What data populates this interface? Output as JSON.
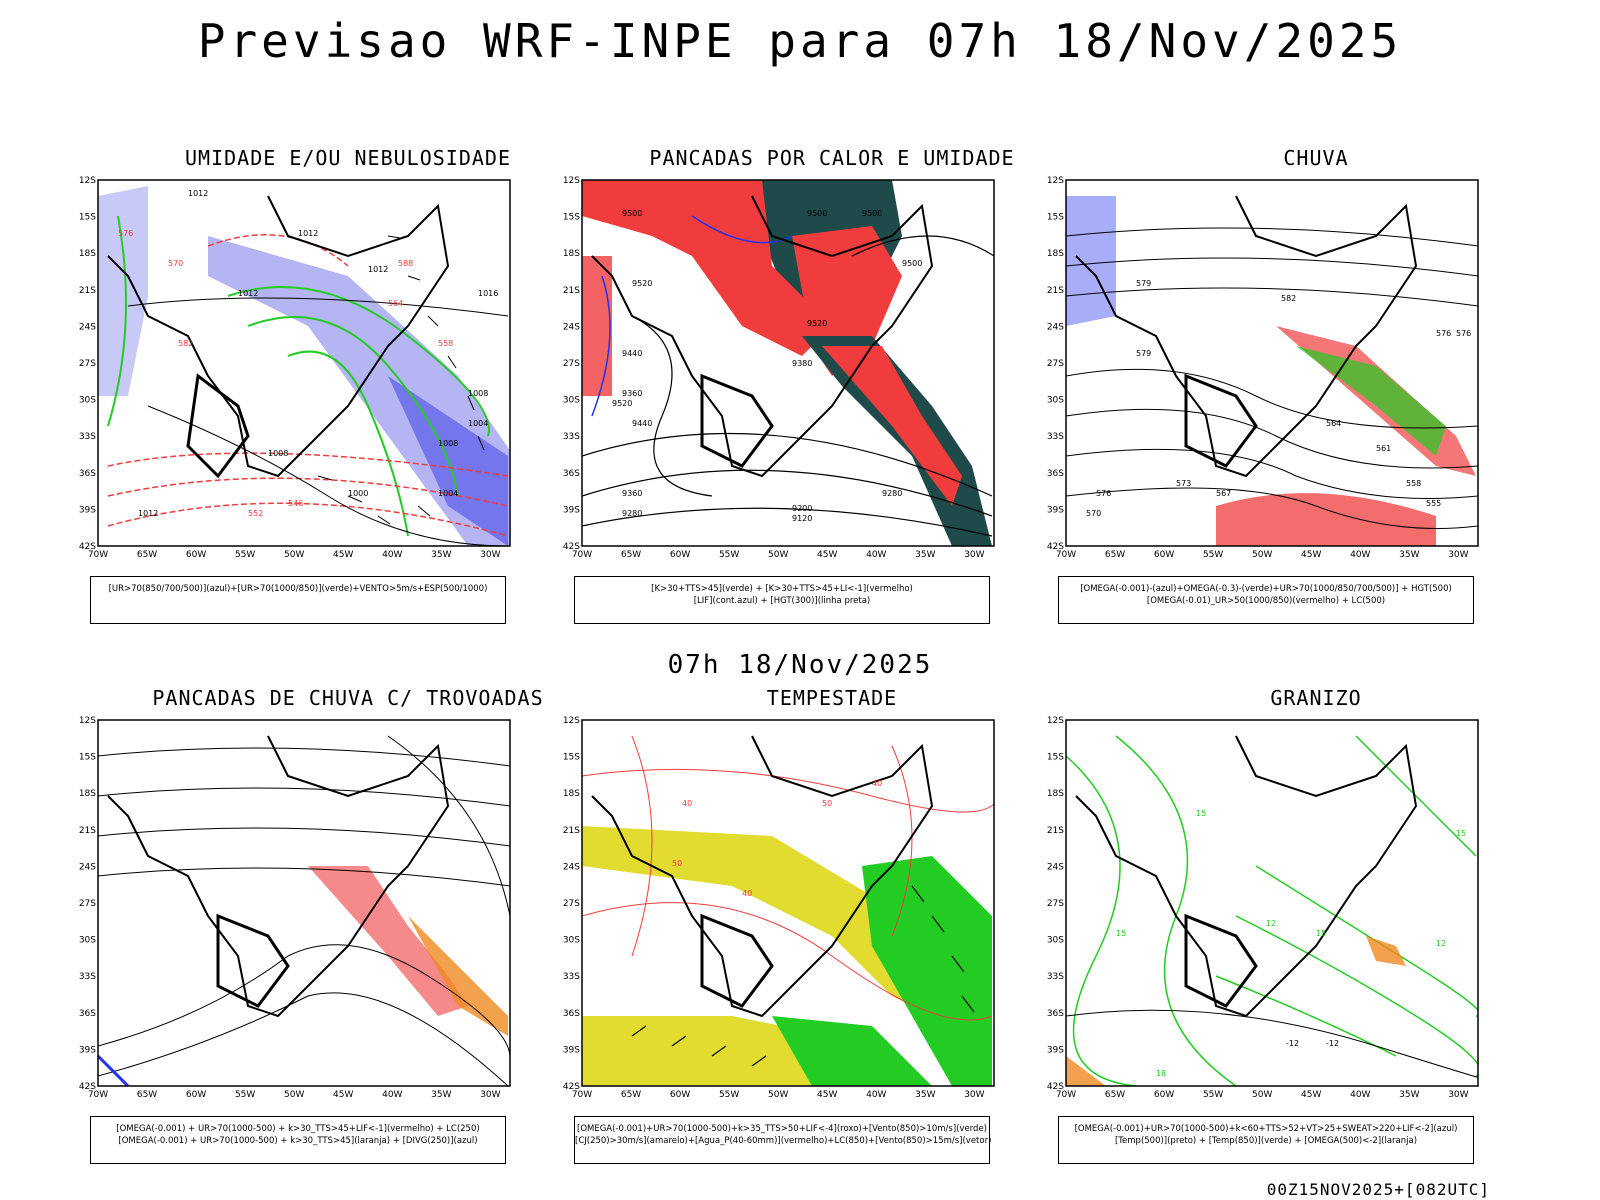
{
  "title": "Previsao WRF-INPE  para 07h 18/Nov/2025",
  "mid_title": "07h 18/Nov/2025",
  "footer": "00Z15NOV2025+[082UTC]",
  "lat_ticks": [
    "12S",
    "15S",
    "18S",
    "21S",
    "24S",
    "27S",
    "30S",
    "33S",
    "36S",
    "39S",
    "42S"
  ],
  "lon_ticks": [
    "70W",
    "65W",
    "60W",
    "55W",
    "50W",
    "45W",
    "40W",
    "35W",
    "30W"
  ],
  "panels": [
    {
      "title": "UMIDADE E/OU NEBULOSIDADE",
      "legend": [
        "[UR>70(850/700/500)](azul)+[UR>70(1000/850)](verde)+VENTO>5m/s+ESP(500/1000)"
      ],
      "labels": [
        "1012",
        "1012",
        "1012",
        "1012",
        "1016",
        "1008",
        "1004",
        "1008",
        "1000",
        "1004",
        "1008",
        "1012",
        "570",
        "576",
        "582",
        "558",
        "552",
        "546",
        "564",
        "588"
      ]
    },
    {
      "title": "PANCADAS POR CALOR E UMIDADE",
      "legend": [
        "[K>30+TTS>45](verde) + [K>30+TTS>45+LI<-1](vermelho)",
        "[LIF](cont.azul) + [HGT(300)](linha preta)"
      ],
      "labels": [
        "9500",
        "9500",
        "9500",
        "9500",
        "9520",
        "9520",
        "9440",
        "9380",
        "9360",
        "9520",
        "9440",
        "9360",
        "9280",
        "9200",
        "9120",
        "9280"
      ]
    },
    {
      "title": "CHUVA",
      "legend": [
        "[OMEGA(-0.001)-(azul)+OMEGA(-0.3)-(verde)+UR>70(1000/850/700/500)] + HGT(500)",
        "[OMEGA(-0.01)_UR>50(1000/850)(vermelho) + LC(500)"
      ],
      "labels": [
        "582",
        "579",
        "576",
        "573",
        "576",
        "570",
        "567",
        "564",
        "561",
        "558",
        "555",
        "579",
        "576"
      ]
    },
    {
      "title": "PANCADAS DE CHUVA C/ TROVOADAS",
      "legend": [
        "[OMEGA(-0.001) + UR>70(1000-500) + k>30_TTS>45+LIF<-1](vermelho) + LC(250)",
        "[OMEGA(-0.001) + UR>70(1000-500) + k>30_TTS>45](laranja) + [DIVG(250)](azul)"
      ],
      "labels": []
    },
    {
      "title": "TEMPESTADE",
      "legend": [
        "[OMEGA(-0.001)+UR>70(1000-500)+k>35_TTS>50+LIF<-4](roxo)+[Vento(850)>10m/s](verde)",
        "[CJ(250)>30m/s](amarelo)+[Agua_P(40-60mm)](vermelho)+LC(850)+[Vento(850)>15m/s](vetor)"
      ],
      "labels": [
        "40",
        "50",
        "40",
        "50",
        "40"
      ]
    },
    {
      "title": "GRANIZO",
      "legend": [
        "[OMEGA(-0.001)+UR>70(1000-500)+k<60+TTS>52+VT>25+SWEAT>220+LIF<-2](azul)",
        "[Temp(500)](preto) + [Temp(850)](verde) + [OMEGA(500)<-2](laranja)"
      ],
      "labels": [
        "15",
        "12",
        "15",
        "-12",
        "18",
        "12",
        "15",
        "-12",
        "15"
      ]
    }
  ],
  "colors": {
    "red": "#f03c3c",
    "green": "#22cc22",
    "blue": "#2233ee",
    "lavender": "#9c9cf0",
    "darkteal": "#1f4a4a",
    "yellow": "#e3dc30",
    "orange": "#f08a20",
    "black": "#000000"
  }
}
